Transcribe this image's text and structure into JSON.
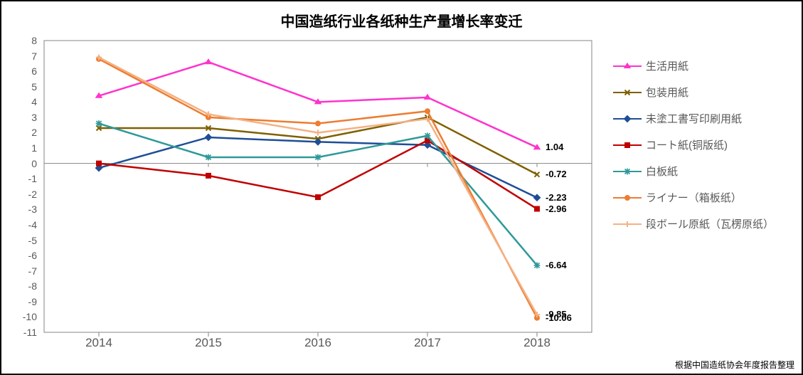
{
  "title": "中国造纸行业各纸种生产量增长率变迁",
  "source_note": "根据中国造纸协会年度报告整理",
  "chart": {
    "type": "line",
    "xlim": [
      2013.5,
      2018.5
    ],
    "ylim": [
      -11,
      8
    ],
    "ytick_min": -11,
    "ytick_max": 8,
    "ytick_step": 1,
    "xticks": [
      2014,
      2015,
      2016,
      2017,
      2018
    ],
    "plot_border_color": "#868686",
    "gridline_color": "#d9d9d9",
    "zero_line_color": "#868686",
    "background_color": "#ffffff",
    "tick_fontsize": 14,
    "x_tick_fontsize": 17,
    "line_width": 2.5,
    "marker_size": 7,
    "series": [
      {
        "name": "生活用紙",
        "color": "#ff33cc",
        "marker": "triangle",
        "x": [
          2014,
          2015,
          2016,
          2017,
          2018
        ],
        "y": [
          4.4,
          6.6,
          4.0,
          4.3,
          1.04
        ],
        "end_label": "1.04"
      },
      {
        "name": "包装用紙",
        "color": "#7f6000",
        "marker": "x",
        "x": [
          2014,
          2015,
          2016,
          2017,
          2018
        ],
        "y": [
          2.3,
          2.3,
          1.6,
          3.0,
          -0.72
        ],
        "end_label": "-0.72"
      },
      {
        "name": "未塗工書写印刷用紙",
        "color": "#1f4e96",
        "marker": "diamond",
        "x": [
          2014,
          2015,
          2016,
          2017,
          2018
        ],
        "y": [
          -0.3,
          1.7,
          1.4,
          1.2,
          -2.23
        ],
        "end_label": "-2.23"
      },
      {
        "name": "コート紙(铜版纸)",
        "color": "#c00000",
        "marker": "square",
        "x": [
          2014,
          2015,
          2016,
          2017,
          2018
        ],
        "y": [
          0.0,
          -0.8,
          -2.2,
          1.5,
          -2.96
        ],
        "end_label": "-2.96"
      },
      {
        "name": "白板紙",
        "color": "#2e9999",
        "marker": "star",
        "x": [
          2014,
          2015,
          2016,
          2017,
          2018
        ],
        "y": [
          2.6,
          0.4,
          0.4,
          1.8,
          -6.64
        ],
        "end_label": "-6.64"
      },
      {
        "name": "ライナー（箱板纸）",
        "color": "#ed7d31",
        "marker": "circle",
        "x": [
          2014,
          2015,
          2016,
          2017,
          2018
        ],
        "y": [
          6.8,
          3.0,
          2.6,
          3.4,
          -10.06
        ],
        "end_label": "-10.06"
      },
      {
        "name": "段ボール原紙（瓦楞原纸）",
        "color": "#f4b183",
        "marker": "plus",
        "x": [
          2014,
          2015,
          2016,
          2017,
          2018
        ],
        "y": [
          6.9,
          3.2,
          2.0,
          2.9,
          -9.85
        ],
        "end_label": "-9.85"
      }
    ]
  }
}
